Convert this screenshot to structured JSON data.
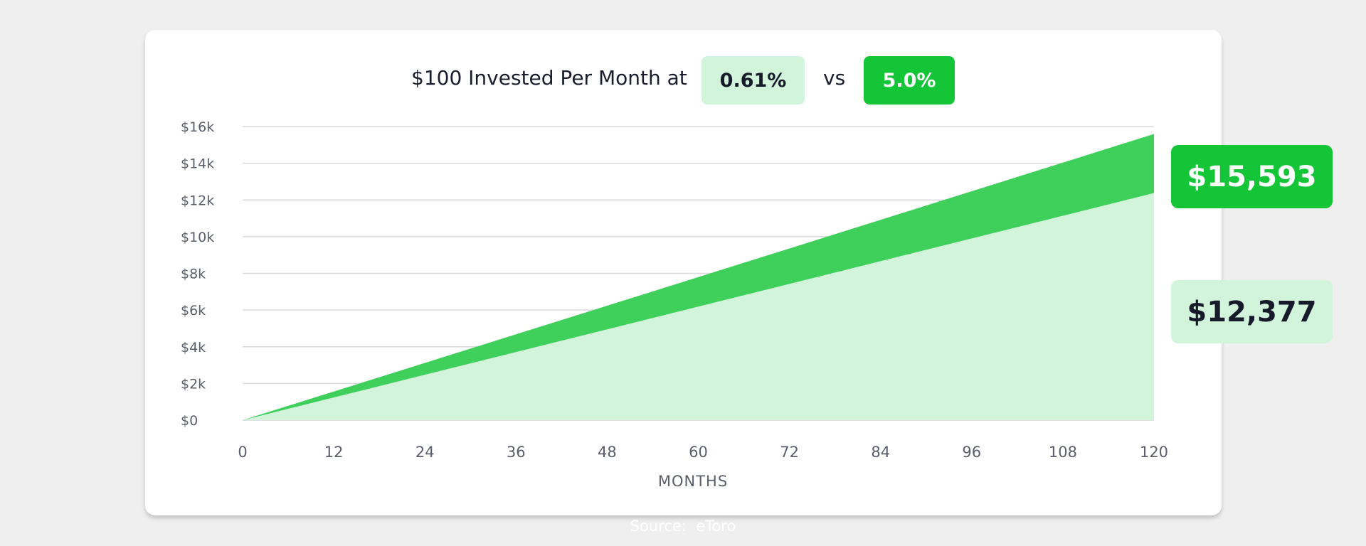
{
  "header": {
    "title": "$100 Invested Per Month at",
    "vs": "vs",
    "rate_low": "0.61%",
    "rate_high": "5.0%"
  },
  "end_values": {
    "high": "$15,593",
    "low": "$12,377"
  },
  "source": "Source:  eToro",
  "colors": {
    "high_fill": "#3ed05a",
    "low_fill": "#d2f4da",
    "badge_high": "#13c537",
    "badge_low": "#d2f4da"
  },
  "chart_data": {
    "type": "area",
    "title": "$100 Invested Per Month at",
    "xlabel": "MONTHS",
    "ylabel": "",
    "xlim": [
      0,
      120
    ],
    "ylim": [
      0,
      16000
    ],
    "x_ticks": [
      0,
      12,
      24,
      36,
      48,
      60,
      72,
      84,
      96,
      108,
      120
    ],
    "y_ticks": [
      0,
      2000,
      4000,
      6000,
      8000,
      10000,
      12000,
      14000,
      16000
    ],
    "y_tick_labels": [
      "$0",
      "$2k",
      "$4k",
      "$6k",
      "$8k",
      "$10k",
      "$12k",
      "$14k",
      "$16k"
    ],
    "grid": true,
    "series": [
      {
        "name": "5.0%",
        "x": [
          0,
          120
        ],
        "y": [
          0,
          15593
        ],
        "color": "#3ed05a"
      },
      {
        "name": "0.61%",
        "x": [
          0,
          120
        ],
        "y": [
          0,
          12377
        ],
        "color": "#d2f4da"
      }
    ]
  }
}
